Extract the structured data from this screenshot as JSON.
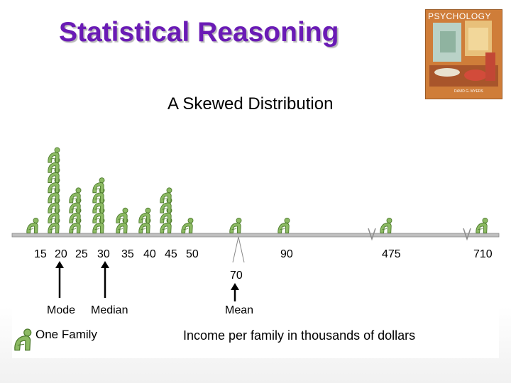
{
  "slide": {
    "title": "Statistical Reasoning",
    "subtitle": "A Skewed Distribution"
  },
  "book": {
    "title": "PSYCHOLOGY",
    "author": "DAVID G. MYERS"
  },
  "axis": {
    "tick_labels": [
      "15",
      "20",
      "25",
      "30",
      "35",
      "40",
      "45",
      "50",
      "90",
      "475",
      "710"
    ],
    "mean_value": "70"
  },
  "markers": {
    "mode": "Mode",
    "median": "Median",
    "mean": "Mean"
  },
  "legend": {
    "icon": "person-icon",
    "label": "One Family"
  },
  "caption": "Income per family in thousands of dollars",
  "chart_data": {
    "type": "pictograph",
    "categories": [
      "15",
      "20",
      "25",
      "30",
      "35",
      "40",
      "45",
      "50",
      "90",
      "475",
      "710"
    ],
    "values": [
      1,
      8,
      4,
      5,
      2,
      2,
      4,
      1,
      1,
      1,
      1
    ],
    "statistics": {
      "mode": 20,
      "median": 30,
      "mean": 70
    },
    "xlabel": "Income per family in thousands of dollars",
    "unit": "One Family"
  },
  "colors": {
    "title": "#6a1bb5",
    "figure": "#8cba63",
    "figure_outline": "#4d7a2d",
    "axis": "#bfbfbf"
  }
}
